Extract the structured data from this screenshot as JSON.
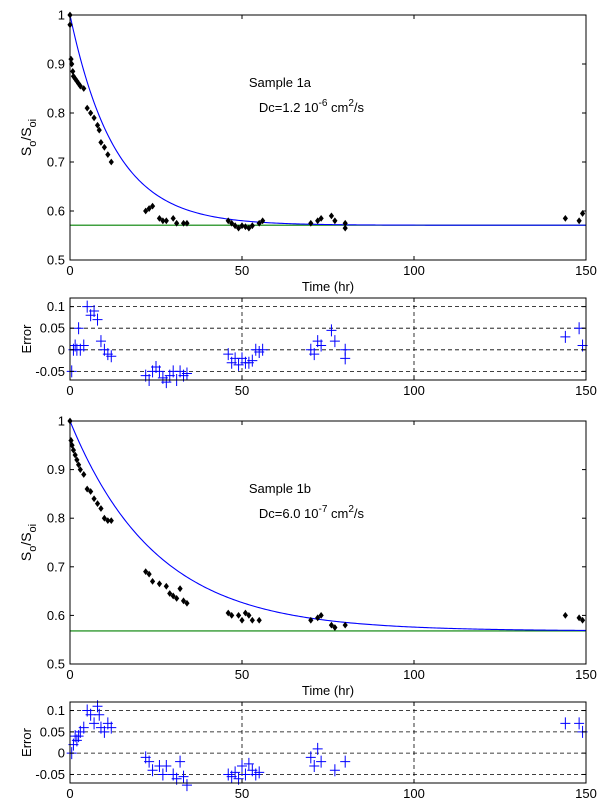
{
  "chart_data": [
    {
      "type": "scatter",
      "annotation": "Sample 1a",
      "annotation_dc": "Dc=1.2 10",
      "annotation_exp": "-6",
      "annotation_unit": " cm",
      "annotation_unit_exp": "2",
      "annotation_unit_tail": "/s",
      "ylabel_main": "S",
      "ylabel_sub1": "o",
      "ylabel_mid": "/S",
      "ylabel_sub2": "oi",
      "xlabel": "Time  (hr)",
      "xlim": [
        0,
        150
      ],
      "ylim": [
        0.5,
        1.0
      ],
      "x_ticks": [
        "0",
        "50",
        "100",
        "150"
      ],
      "y_ticks": [
        "0.5",
        "0.6",
        "0.7",
        "0.8",
        "0.9",
        "1"
      ],
      "grid": false,
      "asymptote": 0.571,
      "fit": {
        "color": "#0000ff",
        "a": 0.571,
        "b": 0.429,
        "tau": 13
      },
      "series": [
        {
          "marker": "diamond",
          "color": "#000000",
          "points": [
            [
              0,
              1.0
            ],
            [
              0,
              0.98
            ],
            [
              0.3,
              0.91
            ],
            [
              0.5,
              0.9
            ],
            [
              0.8,
              0.885
            ],
            [
              1,
              0.875
            ],
            [
              1.5,
              0.87
            ],
            [
              2,
              0.865
            ],
            [
              2.5,
              0.86
            ],
            [
              3,
              0.855
            ],
            [
              4,
              0.85
            ],
            [
              5,
              0.81
            ],
            [
              6,
              0.8
            ],
            [
              7,
              0.79
            ],
            [
              8,
              0.775
            ],
            [
              8.5,
              0.765
            ],
            [
              9,
              0.74
            ],
            [
              10,
              0.73
            ],
            [
              11,
              0.715
            ],
            [
              12,
              0.7
            ],
            [
              22,
              0.6
            ],
            [
              23,
              0.605
            ],
            [
              24,
              0.61
            ],
            [
              26,
              0.585
            ],
            [
              27,
              0.58
            ],
            [
              28,
              0.58
            ],
            [
              30,
              0.585
            ],
            [
              31,
              0.575
            ],
            [
              33,
              0.575
            ],
            [
              34,
              0.575
            ],
            [
              46,
              0.58
            ],
            [
              47,
              0.575
            ],
            [
              48,
              0.57
            ],
            [
              49,
              0.565
            ],
            [
              50,
              0.57
            ],
            [
              51,
              0.568
            ],
            [
              52,
              0.565
            ],
            [
              53,
              0.57
            ],
            [
              55,
              0.575
            ],
            [
              56,
              0.58
            ],
            [
              70,
              0.575
            ],
            [
              72,
              0.58
            ],
            [
              73,
              0.585
            ],
            [
              76,
              0.59
            ],
            [
              77,
              0.58
            ],
            [
              80,
              0.575
            ],
            [
              80,
              0.565
            ],
            [
              144,
              0.585
            ],
            [
              148,
              0.58
            ],
            [
              149,
              0.595
            ]
          ]
        }
      ]
    },
    {
      "type": "scatter",
      "ylabel": "Error",
      "xlim": [
        0,
        150
      ],
      "ylim": [
        -0.07,
        0.12
      ],
      "x_ticks": [
        "0",
        "50",
        "100",
        "150"
      ],
      "y_ticks": [
        "-0.05",
        "0",
        "0.05",
        "0.1"
      ],
      "grid": true,
      "series": [
        {
          "marker": "plus",
          "color": "#0000ff",
          "points": [
            [
              0.5,
              -0.05
            ],
            [
              1,
              0.0
            ],
            [
              1.5,
              0.01
            ],
            [
              2,
              0.0
            ],
            [
              2.5,
              0.05
            ],
            [
              3,
              0.0
            ],
            [
              4,
              0.01
            ],
            [
              5,
              0.1
            ],
            [
              6,
              0.08
            ],
            [
              7,
              0.09
            ],
            [
              8,
              0.07
            ],
            [
              9,
              0.02
            ],
            [
              10,
              0.0
            ],
            [
              11,
              -0.01
            ],
            [
              12,
              -0.015
            ],
            [
              22,
              -0.06
            ],
            [
              23,
              -0.07
            ],
            [
              24,
              -0.05
            ],
            [
              25,
              -0.04
            ],
            [
              26,
              -0.05
            ],
            [
              27,
              -0.065
            ],
            [
              28,
              -0.075
            ],
            [
              29,
              -0.06
            ],
            [
              30,
              -0.05
            ],
            [
              31,
              -0.07
            ],
            [
              32,
              -0.05
            ],
            [
              33,
              -0.06
            ],
            [
              34,
              -0.055
            ],
            [
              46,
              -0.01
            ],
            [
              47,
              -0.03
            ],
            [
              48,
              -0.02
            ],
            [
              49,
              -0.035
            ],
            [
              50,
              -0.02
            ],
            [
              51,
              -0.03
            ],
            [
              52,
              -0.03
            ],
            [
              53,
              -0.025
            ],
            [
              54,
              0.0
            ],
            [
              55,
              -0.005
            ],
            [
              56,
              0.0
            ],
            [
              70,
              0.0
            ],
            [
              71,
              -0.01
            ],
            [
              72,
              0.02
            ],
            [
              73,
              0.01
            ],
            [
              76,
              0.045
            ],
            [
              77,
              0.02
            ],
            [
              80,
              0.0
            ],
            [
              80,
              -0.02
            ],
            [
              144,
              0.03
            ],
            [
              148,
              0.05
            ],
            [
              149,
              0.01
            ]
          ]
        }
      ]
    },
    {
      "type": "scatter",
      "annotation": "Sample 1b",
      "annotation_dc": "Dc=6.0 10",
      "annotation_exp": "-7",
      "annotation_unit": " cm",
      "annotation_unit_exp": "2",
      "annotation_unit_tail": "/s",
      "ylabel_main": "S",
      "ylabel_sub1": "o",
      "ylabel_mid": "/S",
      "ylabel_sub2": "oi",
      "xlabel": "Time  (hr)",
      "xlim": [
        0,
        150
      ],
      "ylim": [
        0.5,
        1.0
      ],
      "x_ticks": [
        "0",
        "50",
        "100",
        "150"
      ],
      "y_ticks": [
        "0.5",
        "0.6",
        "0.7",
        "0.8",
        "0.9",
        "1"
      ],
      "grid": false,
      "asymptote": 0.568,
      "fit": {
        "color": "#0000ff",
        "a": 0.568,
        "b": 0.432,
        "tau": 25
      },
      "series": [
        {
          "marker": "diamond",
          "color": "#000000",
          "points": [
            [
              0,
              1.0
            ],
            [
              0.3,
              0.96
            ],
            [
              0.6,
              0.95
            ],
            [
              1,
              0.94
            ],
            [
              1.5,
              0.93
            ],
            [
              2,
              0.92
            ],
            [
              2.5,
              0.91
            ],
            [
              3,
              0.9
            ],
            [
              4,
              0.89
            ],
            [
              5,
              0.86
            ],
            [
              6,
              0.855
            ],
            [
              7,
              0.84
            ],
            [
              8,
              0.83
            ],
            [
              9,
              0.82
            ],
            [
              10,
              0.8
            ],
            [
              11,
              0.795
            ],
            [
              12,
              0.795
            ],
            [
              22,
              0.69
            ],
            [
              23,
              0.685
            ],
            [
              24,
              0.67
            ],
            [
              26,
              0.665
            ],
            [
              28,
              0.66
            ],
            [
              29,
              0.645
            ],
            [
              30,
              0.64
            ],
            [
              31,
              0.635
            ],
            [
              32,
              0.655
            ],
            [
              33,
              0.63
            ],
            [
              34,
              0.625
            ],
            [
              46,
              0.605
            ],
            [
              47,
              0.6
            ],
            [
              49,
              0.6
            ],
            [
              50,
              0.59
            ],
            [
              51,
              0.605
            ],
            [
              52,
              0.6
            ],
            [
              53,
              0.59
            ],
            [
              55,
              0.59
            ],
            [
              70,
              0.59
            ],
            [
              72,
              0.595
            ],
            [
              73,
              0.6
            ],
            [
              76,
              0.58
            ],
            [
              77,
              0.575
            ],
            [
              80,
              0.58
            ],
            [
              144,
              0.6
            ],
            [
              148,
              0.595
            ],
            [
              149,
              0.59
            ]
          ]
        }
      ]
    },
    {
      "type": "scatter",
      "ylabel": "Error",
      "xlim": [
        0,
        150
      ],
      "ylim": [
        -0.07,
        0.12
      ],
      "x_ticks": [
        "0",
        "50",
        "100",
        "150"
      ],
      "y_ticks": [
        "-0.05",
        "0",
        "0.05",
        "0.1"
      ],
      "grid": true,
      "series": [
        {
          "marker": "plus",
          "color": "#0000ff",
          "points": [
            [
              0.5,
              0.0
            ],
            [
              1,
              0.02
            ],
            [
              1.5,
              0.04
            ],
            [
              2,
              0.03
            ],
            [
              2.5,
              0.04
            ],
            [
              3,
              0.05
            ],
            [
              4,
              0.06
            ],
            [
              5,
              0.1
            ],
            [
              6,
              0.09
            ],
            [
              7,
              0.07
            ],
            [
              8,
              0.11
            ],
            [
              8.5,
              0.09
            ],
            [
              9,
              0.06
            ],
            [
              10,
              0.05
            ],
            [
              11,
              0.07
            ],
            [
              12,
              0.06
            ],
            [
              22,
              -0.01
            ],
            [
              23,
              -0.02
            ],
            [
              24,
              -0.04
            ],
            [
              26,
              -0.03
            ],
            [
              27,
              -0.05
            ],
            [
              28,
              -0.03
            ],
            [
              30,
              -0.05
            ],
            [
              31,
              -0.06
            ],
            [
              32,
              -0.02
            ],
            [
              33,
              -0.055
            ],
            [
              34,
              -0.075
            ],
            [
              46,
              -0.05
            ],
            [
              47,
              -0.055
            ],
            [
              48,
              -0.045
            ],
            [
              49,
              -0.06
            ],
            [
              50,
              -0.03
            ],
            [
              51,
              -0.05
            ],
            [
              52,
              -0.025
            ],
            [
              53,
              -0.04
            ],
            [
              54,
              -0.05
            ],
            [
              55,
              -0.045
            ],
            [
              70,
              -0.01
            ],
            [
              71,
              -0.03
            ],
            [
              72,
              0.01
            ],
            [
              73,
              -0.02
            ],
            [
              77,
              -0.04
            ],
            [
              80,
              -0.02
            ],
            [
              144,
              0.07
            ],
            [
              148,
              0.07
            ],
            [
              149,
              0.05
            ]
          ]
        }
      ]
    }
  ]
}
